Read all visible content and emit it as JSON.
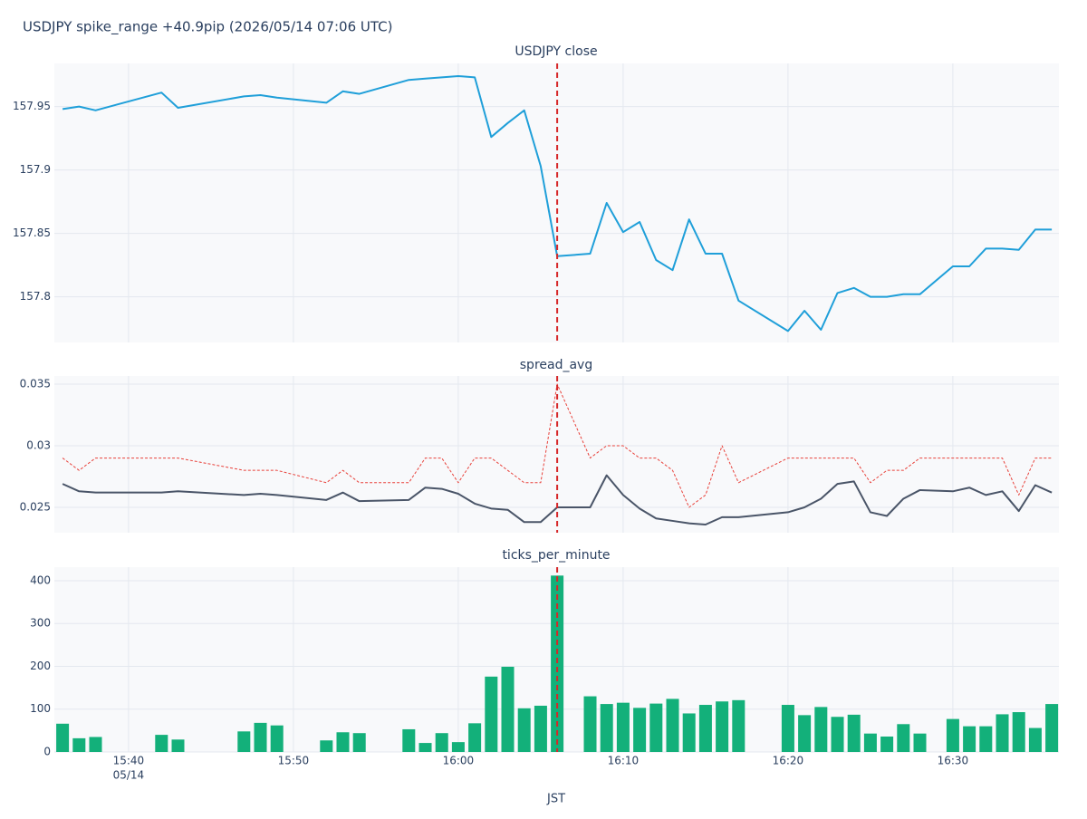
{
  "chart_data": {
    "type": "subplots",
    "title": "USDJPY spike_range +40.9pip (2026/05/14 07:06 UTC)",
    "x_title": "JST",
    "x_date_label": "05/14",
    "x": [
      "15:36",
      "15:37",
      "15:38",
      "15:42",
      "15:43",
      "15:47",
      "15:48",
      "15:49",
      "15:52",
      "15:53",
      "15:54",
      "15:57",
      "15:58",
      "15:59",
      "16:00",
      "16:01",
      "16:02",
      "16:03",
      "16:04",
      "16:05",
      "16:06",
      "16:08",
      "16:09",
      "16:10",
      "16:11",
      "16:12",
      "16:13",
      "16:14",
      "16:15",
      "16:16",
      "16:17",
      "16:20",
      "16:21",
      "16:22",
      "16:23",
      "16:24",
      "16:25",
      "16:26",
      "16:27",
      "16:28",
      "16:30",
      "16:31",
      "16:32",
      "16:33",
      "16:34",
      "16:35",
      "16:36"
    ],
    "xlim": [
      "15:35:30",
      "16:36:26"
    ],
    "xticks": [
      "15:40",
      "15:50",
      "16:00",
      "16:10",
      "16:20",
      "16:30"
    ],
    "grid": true,
    "event_x": "16:06",
    "event_color": "#d62728",
    "panels": [
      {
        "type": "line",
        "title": "USDJPY close",
        "ylim": [
          157.764,
          157.984
        ],
        "yticks": [
          157.8,
          157.85,
          157.9,
          157.95
        ],
        "series": [
          {
            "color": "#1f9fd9",
            "dash": false,
            "values": [
              157.948,
              157.95,
              157.947,
              157.961,
              157.949,
              157.958,
              157.959,
              157.957,
              157.953,
              157.962,
              157.96,
              157.971,
              157.972,
              157.973,
              157.974,
              157.973,
              157.926,
              157.937,
              157.947,
              157.903,
              157.832,
              157.834,
              157.874,
              157.851,
              157.859,
              157.829,
              157.821,
              157.861,
              157.834,
              157.834,
              157.797,
              157.773,
              157.789,
              157.774,
              157.803,
              157.807,
              157.8,
              157.8,
              157.802,
              157.802,
              157.824,
              157.824,
              157.838,
              157.838,
              157.837,
              157.853,
              157.853
            ]
          }
        ]
      },
      {
        "type": "line",
        "title": "spread_avg",
        "ylim": [
          0.02294,
          0.03566
        ],
        "yticks": [
          0.025,
          0.03,
          0.035
        ],
        "series": [
          {
            "color": "#e8413a",
            "dash": true,
            "values": [
              0.029,
              0.028,
              0.029,
              0.029,
              0.029,
              0.028,
              0.028,
              0.028,
              0.027,
              0.028,
              0.027,
              0.027,
              0.029,
              0.029,
              0.027,
              0.029,
              0.029,
              0.028,
              0.027,
              0.027,
              0.035,
              0.029,
              0.03,
              0.03,
              0.029,
              0.029,
              0.028,
              0.025,
              0.026,
              0.03,
              0.027,
              0.029,
              0.029,
              0.029,
              0.029,
              0.029,
              0.027,
              0.028,
              0.028,
              0.029,
              0.029,
              0.029,
              0.029,
              0.029,
              0.026,
              0.029,
              0.029
            ]
          },
          {
            "color": "#4a5568",
            "dash": false,
            "values": [
              0.0269,
              0.0263,
              0.0262,
              0.0262,
              0.0263,
              0.026,
              0.0261,
              0.026,
              0.0256,
              0.0262,
              0.0255,
              0.0256,
              0.0266,
              0.0265,
              0.0261,
              0.0253,
              0.0249,
              0.0248,
              0.0238,
              0.0238,
              0.025,
              0.025,
              0.0276,
              0.026,
              0.0249,
              0.0241,
              0.0239,
              0.0237,
              0.0236,
              0.0242,
              0.0242,
              0.0246,
              0.025,
              0.0257,
              0.0269,
              0.0271,
              0.0246,
              0.0243,
              0.0257,
              0.0264,
              0.0263,
              0.0266,
              0.026,
              0.0263,
              0.0247,
              0.0268,
              0.0262
            ]
          }
        ]
      },
      {
        "type": "bar",
        "title": "ticks_per_minute",
        "ylim": [
          0,
          431.7
        ],
        "yticks": [
          0,
          100,
          200,
          300,
          400
        ],
        "series": [
          {
            "color": "#13b07a",
            "values": [
              66,
              32,
              35,
              40,
              29,
              48,
              68,
              62,
              27,
              46,
              44,
              53,
              21,
              44,
              23,
              67,
              176,
              199,
              102,
              108,
              412,
              130,
              112,
              115,
              103,
              113,
              124,
              90,
              110,
              118,
              121,
              110,
              86,
              105,
              82,
              87,
              43,
              36,
              65,
              43,
              77,
              60,
              60,
              88,
              93,
              56,
              112
            ]
          }
        ]
      }
    ]
  }
}
